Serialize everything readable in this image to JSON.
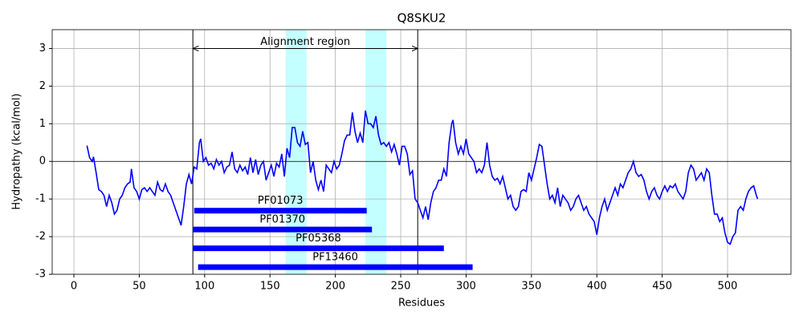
{
  "chart_data": {
    "type": "line",
    "title": "Q8SKU2",
    "xlabel": "Residues",
    "ylabel": "Hydropathy (kcal/mol)",
    "xlim": [
      -16.6,
      548.5
    ],
    "ylim": [
      -3,
      3.5
    ],
    "xticks": [
      0,
      50,
      100,
      150,
      200,
      250,
      300,
      350,
      400,
      450,
      500
    ],
    "yticks": [
      -3,
      -2,
      -1,
      0,
      1,
      2,
      3
    ],
    "grid": true,
    "hline": 0,
    "vlines": [
      91,
      263
    ],
    "spans": [
      [
        162,
        178
      ],
      [
        223,
        239
      ]
    ],
    "span_color": "#c4ffff",
    "arrow": {
      "text": "Alignment region",
      "from": 91,
      "to": 263,
      "y": 3
    },
    "domain_color": "#0000ff",
    "domains": [
      {
        "name": "PF01073",
        "start": 92,
        "end": 224,
        "y": -1.31
      },
      {
        "name": "PF01370",
        "start": 91,
        "end": 228,
        "y": -1.81
      },
      {
        "name": "PF05368",
        "start": 91,
        "end": 283,
        "y": -2.31
      },
      {
        "name": "PF13460",
        "start": 95,
        "end": 305,
        "y": -2.81
      }
    ],
    "series": [
      {
        "name": "Hydropathy",
        "color": "#0000ff",
        "x": [
          10,
          12,
          14,
          15,
          17,
          19,
          21,
          23,
          25,
          27,
          29,
          31,
          33,
          35,
          37,
          39,
          41,
          43,
          44,
          46,
          48,
          50,
          52,
          54,
          56,
          58,
          60,
          62,
          64,
          66,
          68,
          70,
          72,
          74,
          76,
          78,
          80,
          82,
          84,
          86,
          88,
          90,
          92,
          94,
          96,
          97,
          99,
          101,
          103,
          105,
          107,
          109,
          111,
          113,
          115,
          117,
          119,
          121,
          123,
          125,
          127,
          129,
          131,
          133,
          135,
          137,
          139,
          141,
          143,
          145,
          147,
          149,
          151,
          153,
          155,
          157,
          159,
          161,
          163,
          165,
          167,
          169,
          171,
          173,
          175,
          177,
          179,
          181,
          183,
          185,
          187,
          189,
          191,
          193,
          195,
          197,
          199,
          201,
          203,
          205,
          207,
          209,
          211,
          213,
          215,
          217,
          219,
          221,
          223,
          225,
          227,
          229,
          231,
          233,
          235,
          237,
          239,
          241,
          243,
          245,
          247,
          249,
          251,
          253,
          255,
          257,
          259,
          261,
          263,
          265,
          267,
          269,
          271,
          273,
          275,
          277,
          279,
          281,
          283,
          285,
          287,
          289,
          290,
          292,
          294,
          296,
          298,
          300,
          302,
          304,
          306,
          308,
          310,
          312,
          314,
          316,
          318,
          320,
          322,
          324,
          326,
          328,
          330,
          332,
          334,
          336,
          338,
          340,
          342,
          344,
          346,
          348,
          350,
          352,
          354,
          356,
          358,
          360,
          362,
          364,
          366,
          368,
          370,
          372,
          374,
          376,
          378,
          380,
          382,
          384,
          386,
          388,
          390,
          392,
          394,
          396,
          398,
          400,
          402,
          404,
          406,
          408,
          410,
          412,
          414,
          416,
          418,
          420,
          422,
          424,
          426,
          428,
          430,
          432,
          434,
          436,
          438,
          440,
          442,
          444,
          446,
          448,
          450,
          452,
          454,
          456,
          458,
          460,
          462,
          464,
          466,
          468,
          470,
          472,
          474,
          476,
          478,
          480,
          482,
          484,
          486,
          488,
          490,
          492,
          494,
          496,
          498,
          500,
          502,
          504,
          506,
          508,
          510,
          512,
          514,
          516,
          518,
          520,
          522,
          523
        ],
        "values": [
          0.42,
          0.1,
          0.0,
          0.12,
          -0.3,
          -0.75,
          -0.8,
          -0.9,
          -1.2,
          -0.9,
          -1.1,
          -1.4,
          -1.3,
          -1.0,
          -0.9,
          -0.7,
          -0.6,
          -0.55,
          -0.2,
          -0.7,
          -0.8,
          -1.0,
          -0.75,
          -0.7,
          -0.8,
          -0.7,
          -0.8,
          -0.9,
          -0.55,
          -0.75,
          -0.8,
          -0.6,
          -0.8,
          -0.9,
          -1.1,
          -1.3,
          -1.5,
          -1.7,
          -1.2,
          -0.6,
          -0.35,
          -0.6,
          -0.15,
          -0.2,
          0.5,
          0.6,
          0.0,
          0.1,
          -0.1,
          -0.05,
          -0.2,
          0.05,
          -0.1,
          0.0,
          -0.3,
          -0.15,
          -0.1,
          0.25,
          -0.2,
          -0.3,
          -0.1,
          -0.25,
          -0.15,
          -0.35,
          0.1,
          -0.3,
          0.05,
          -0.35,
          -0.1,
          0.0,
          -0.5,
          -0.3,
          -0.1,
          -0.4,
          -0.05,
          -0.15,
          0.2,
          -0.4,
          0.35,
          0.1,
          0.9,
          0.9,
          0.5,
          0.4,
          0.8,
          0.45,
          0.5,
          -0.3,
          0.0,
          -0.5,
          -0.75,
          -0.5,
          -0.8,
          -0.1,
          -0.2,
          -0.3,
          0.0,
          -0.2,
          -0.1,
          0.2,
          0.55,
          0.7,
          0.7,
          1.3,
          0.8,
          0.5,
          0.75,
          0.5,
          1.35,
          1.0,
          1.0,
          0.9,
          1.2,
          0.7,
          0.45,
          0.5,
          0.4,
          0.5,
          0.25,
          0.45,
          0.2,
          -0.1,
          0.4,
          0.4,
          0.2,
          -0.35,
          -0.25,
          -1.0,
          -1.1,
          -1.3,
          -1.5,
          -1.2,
          -1.55,
          -1.1,
          -0.8,
          -0.7,
          -0.5,
          -0.5,
          -0.2,
          -0.4,
          0.5,
          1.0,
          1.1,
          0.5,
          0.2,
          0.4,
          0.2,
          0.6,
          0.2,
          0.1,
          0.0,
          -0.3,
          -0.2,
          -0.3,
          -0.1,
          0.5,
          -0.1,
          -0.4,
          -0.5,
          -0.45,
          -0.6,
          -0.4,
          -0.7,
          -1.0,
          -0.9,
          -1.2,
          -1.3,
          -1.2,
          -0.8,
          -0.75,
          -0.8,
          -0.3,
          -0.5,
          -0.2,
          0.1,
          0.45,
          0.4,
          -0.1,
          -0.6,
          -1.0,
          -0.9,
          -1.1,
          -0.7,
          -1.2,
          -0.9,
          -1.0,
          -1.1,
          -1.3,
          -1.2,
          -1.0,
          -0.9,
          -1.1,
          -1.3,
          -1.2,
          -1.4,
          -1.5,
          -1.6,
          -1.95,
          -1.5,
          -1.2,
          -1.0,
          -1.3,
          -1.1,
          -0.9,
          -0.7,
          -0.9,
          -0.6,
          -0.7,
          -0.5,
          -0.3,
          -0.2,
          0.0,
          -0.3,
          -0.4,
          -0.35,
          -0.5,
          -0.8,
          -1.0,
          -0.8,
          -0.7,
          -0.9,
          -1.0,
          -0.8,
          -0.65,
          -0.8,
          -0.65,
          -0.7,
          -0.6,
          -0.8,
          -0.9,
          -1.0,
          -0.8,
          -0.3,
          -0.1,
          -0.2,
          -0.5,
          -0.4,
          -0.3,
          -0.5,
          -0.2,
          -0.3,
          -0.9,
          -1.4,
          -1.4,
          -1.6,
          -1.5,
          -1.9,
          -2.15,
          -2.2,
          -2.0,
          -1.9,
          -1.3,
          -1.2,
          -1.3,
          -1.0,
          -0.8,
          -0.7,
          -0.65,
          -0.9,
          -1.0
        ]
      }
    ]
  }
}
